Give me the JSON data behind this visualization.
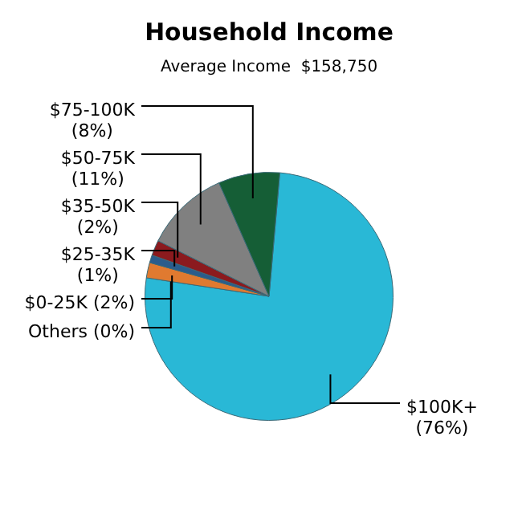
{
  "chart_data": {
    "type": "pie",
    "title": "Household Income",
    "subtitle": "Average Income  $158,750",
    "categories": [
      "$100K+",
      "Others",
      "$0-25K",
      "$25-35K",
      "$35-50K",
      "$50-75K",
      "$75-100K"
    ],
    "values": [
      76,
      0,
      2,
      1,
      2,
      11,
      8
    ],
    "value_labels": [
      "(76%)",
      "(0%)",
      "(2%)",
      "(1%)",
      "(2%)",
      "(11%)",
      "(8%)"
    ],
    "colors": [
      "#29b8d6",
      "#c8c8c8",
      "#e07a30",
      "#2a5c8c",
      "#8b1a1e",
      "#808080",
      "#155e36"
    ],
    "legend": false
  }
}
